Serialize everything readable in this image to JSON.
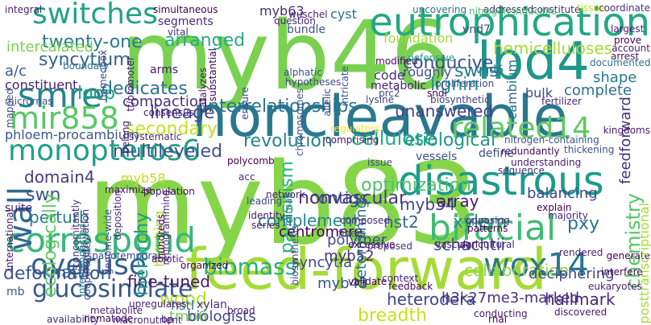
{
  "words": [
    {
      "text": "myb46",
      "color": "#7ad151"
    },
    {
      "text": "myb83",
      "color": "#86d549"
    },
    {
      "text": "noncleavable",
      "color": "#2a788e"
    },
    {
      "text": "feed-forward",
      "color": "#a5db36"
    },
    {
      "text": "eutrophication",
      "color": "#22a884"
    },
    {
      "text": "lbd4",
      "color": "#1f968b"
    },
    {
      "text": "disastrous",
      "color": "#1e9b8a"
    },
    {
      "text": "correspond",
      "color": "#35b779"
    },
    {
      "text": "bifacial",
      "color": "#3fbc73"
    },
    {
      "text": "switches",
      "color": "#20a386"
    },
    {
      "text": "smre",
      "color": "#25858e"
    },
    {
      "text": "wox14",
      "color": "#2a788e"
    },
    {
      "text": "mir858",
      "color": "#58c765"
    },
    {
      "text": "monopteros6",
      "color": "#1fa088"
    },
    {
      "text": "overuse",
      "color": "#33638d"
    },
    {
      "text": "related14",
      "color": "#5ec962"
    },
    {
      "text": "biomass",
      "color": "#29af7f"
    },
    {
      "text": "wall",
      "color": "#31688e"
    },
    {
      "text": "glucosinolate",
      "color": "#39568c"
    },
    {
      "text": "arranged",
      "color": "#25ac82"
    },
    {
      "text": "twenty-one",
      "color": "#287c8e"
    },
    {
      "text": "intercalated",
      "color": "#7ad151"
    },
    {
      "text": "syncytium",
      "color": "#33638d"
    },
    {
      "text": "dedicates",
      "color": "#2c728e"
    },
    {
      "text": "interrelationships",
      "color": "#2c728e"
    },
    {
      "text": "lineage",
      "color": "#404688"
    },
    {
      "text": "secondary",
      "color": "#c2df23"
    },
    {
      "text": "revolution",
      "color": "#26828e"
    },
    {
      "text": "cellulose",
      "color": "#25ac82"
    },
    {
      "text": "etiological",
      "color": "#1f988b"
    },
    {
      "text": "multileveled",
      "color": "#3b528b"
    },
    {
      "text": "unanswered",
      "color": "#433e85"
    },
    {
      "text": "hemicelluloses",
      "color": "#a5db36"
    },
    {
      "text": "conducive",
      "color": "#3b528b"
    },
    {
      "text": "lignin",
      "color": "#21918c"
    },
    {
      "text": "swns",
      "color": "#2a788e"
    },
    {
      "text": "roughly",
      "color": "#3e4c8a"
    },
    {
      "text": "foundation",
      "color": "#a0da39"
    },
    {
      "text": "myb63",
      "color": "#472d7b"
    },
    {
      "text": "cyst",
      "color": "#2c728e"
    },
    {
      "text": "vnd7",
      "color": "#3e4989"
    },
    {
      "text": "vnd6",
      "color": "#2c728e"
    },
    {
      "text": "a/c",
      "color": "#38588c"
    },
    {
      "text": "loop",
      "color": "#1fa088"
    },
    {
      "text": "constituent",
      "color": "#481f70"
    },
    {
      "text": "compaction",
      "color": "#46337f"
    },
    {
      "text": "domain4",
      "color": "#443983"
    },
    {
      "text": "swn",
      "color": "#3b528b"
    },
    {
      "text": "perturb",
      "color": "#2a788e"
    },
    {
      "text": "knat7",
      "color": "#2f6c8e"
    },
    {
      "text": "phloem-procambium",
      "color": "#39568c"
    },
    {
      "text": "myb58",
      "color": "#bddf26"
    },
    {
      "text": "contigs",
      "color": "#3b528b"
    },
    {
      "text": "parasitism",
      "color": "#2ab07f"
    },
    {
      "text": "nst2",
      "color": "#31688e"
    },
    {
      "text": "myb54",
      "color": "#404688"
    },
    {
      "text": "optimization",
      "color": "#4ac16d"
    },
    {
      "text": "array",
      "color": "#481a6c"
    },
    {
      "text": "schachtii",
      "color": "#3e4c8a"
    },
    {
      "text": "pxy",
      "color": "#2c728e"
    },
    {
      "text": "xylem",
      "color": "#21918c"
    },
    {
      "text": "myb52",
      "color": "#472d7b"
    },
    {
      "text": "syncytia",
      "color": "#3e4989"
    },
    {
      "text": "nonvascular",
      "color": "#453882"
    },
    {
      "text": "centromere",
      "color": "#440154"
    },
    {
      "text": "deformation",
      "color": "#3b528b"
    },
    {
      "text": "fine-tuned",
      "color": "#481a6c"
    },
    {
      "text": "wood",
      "color": "#b5de2b"
    },
    {
      "text": "tmo6",
      "color": "#6ece58"
    },
    {
      "text": "myb43",
      "color": "#3b528b"
    },
    {
      "text": "heterodera",
      "color": "#404688"
    },
    {
      "text": "breadth",
      "color": "#c8e020"
    },
    {
      "text": "hallmark",
      "color": "#482878"
    },
    {
      "text": "h3k27me3-marked",
      "color": "#46307e"
    },
    {
      "text": "biologists",
      "color": "#414487"
    },
    {
      "text": "xylan",
      "color": "#472d7b"
    },
    {
      "text": "nstl",
      "color": "#2d708e"
    },
    {
      "text": "collaboration",
      "color": "#8fd744"
    },
    {
      "text": "polymer",
      "color": "#3e4c8a"
    },
    {
      "text": "complement",
      "color": "#24868e"
    },
    {
      "text": "determining",
      "color": "#2e6e8e"
    },
    {
      "text": "balancing",
      "color": "#3e4989"
    },
    {
      "text": "feedforward",
      "color": "#46307e"
    },
    {
      "text": "complete",
      "color": "#2e6f8e"
    },
    {
      "text": "cambium",
      "color": "#2c728e"
    },
    {
      "text": "bulk",
      "color": "#3e4989"
    },
    {
      "text": "shape",
      "color": "#2a788e"
    },
    {
      "text": "code",
      "color": "#472f7d"
    },
    {
      "text": "metabolic",
      "color": "#481f70"
    },
    {
      "text": "hierarchy",
      "color": "#1e9b8a"
    },
    {
      "text": "deciphering",
      "color": "#3f4788"
    },
    {
      "text": "chemistry",
      "color": "#56c667"
    },
    {
      "text": "hatching",
      "color": "#a8db34"
    },
    {
      "text": "arms",
      "color": "#481a6c"
    },
    {
      "text": "segments",
      "color": "#472a7a"
    },
    {
      "text": "simultaneous",
      "color": "#440154"
    },
    {
      "text": "integral",
      "color": "#482173"
    },
    {
      "text": "bundle",
      "color": "#3b528b"
    },
    {
      "text": "alphatic",
      "color": "#3b528b"
    },
    {
      "text": "hypotheses",
      "color": "#404688"
    },
    {
      "text": "vital",
      "color": "#472d7b"
    },
    {
      "text": "kingdoms",
      "color": "#481b6d"
    },
    {
      "text": "nitrogen-containing",
      "color": "#3b528b"
    },
    {
      "text": "thickening",
      "color": "#3b528b"
    },
    {
      "text": "prc2",
      "color": "#404688"
    },
    {
      "text": "sndl",
      "color": "#440154"
    },
    {
      "text": "lysine",
      "color": "#3e4989"
    },
    {
      "text": "biosynthetic",
      "color": "#424086"
    },
    {
      "text": "fertilizer",
      "color": "#482878"
    },
    {
      "text": "redundantly",
      "color": "#46085c"
    },
    {
      "text": "define",
      "color": "#3d4d8a"
    },
    {
      "text": "understanding",
      "color": "#481a6c"
    },
    {
      "text": "sequence",
      "color": "#472c7a"
    },
    {
      "text": "vessels",
      "color": "#3b528b"
    },
    {
      "text": "addressed",
      "color": "#482878"
    },
    {
      "text": "constitute",
      "color": "#46337f"
    },
    {
      "text": "uncovering",
      "color": "#2c728e"
    },
    {
      "text": "wuschel",
      "color": "#482475"
    },
    {
      "text": "question",
      "color": "#482475"
    },
    {
      "text": "tissue",
      "color": "#c0df25"
    },
    {
      "text": "coordinate",
      "color": "#46337f"
    },
    {
      "text": "largest",
      "color": "#481f70"
    },
    {
      "text": "prove",
      "color": "#440154"
    },
    {
      "text": "arrest",
      "color": "#471365"
    },
    {
      "text": "account",
      "color": "#481b6d"
    },
    {
      "text": "documented",
      "color": "#2c728e"
    },
    {
      "text": "proliferation",
      "color": "#3f4889"
    },
    {
      "text": "modified",
      "color": "#46085c"
    },
    {
      "text": "defensive",
      "color": "#1f9e89"
    },
    {
      "text": "homeobox",
      "color": "#3e4989"
    },
    {
      "text": "micrornas",
      "color": "#3b528b"
    },
    {
      "text": "boundary",
      "color": "#2e6e8e"
    },
    {
      "text": "mapped",
      "color": "#3e4c8a"
    },
    {
      "text": "tf/promoter",
      "color": "#481a6c"
    },
    {
      "text": "catalyzes",
      "color": "#481b6d"
    },
    {
      "text": "substantial",
      "color": "#440154"
    },
    {
      "text": "systematic",
      "color": "#482878"
    },
    {
      "text": "chromosomes",
      "color": "#3b528b"
    },
    {
      "text": "ensure",
      "color": "#3e4c8a"
    },
    {
      "text": "belong",
      "color": "#481b6d"
    },
    {
      "text": "comprising",
      "color": "#481467"
    },
    {
      "text": "regulators",
      "color": "#fde725"
    },
    {
      "text": "allelic",
      "color": "#3e4989"
    },
    {
      "text": "consensus",
      "color": "#481467"
    },
    {
      "text": "polycomb",
      "color": "#440154"
    },
    {
      "text": "acc",
      "color": "#482475"
    },
    {
      "text": "maximize",
      "color": "#481467"
    },
    {
      "text": "population",
      "color": "#46085c"
    },
    {
      "text": "network",
      "color": "#481f70"
    },
    {
      "text": "issue",
      "color": "#3e4c8a"
    },
    {
      "text": "ecologically",
      "color": "#5ec962"
    },
    {
      "text": "international",
      "color": "#481a6c"
    },
    {
      "text": "suite",
      "color": "#481f70"
    },
    {
      "text": "concomitantly",
      "color": "#472f7d"
    },
    {
      "text": "trimethylation",
      "color": "#472d7b"
    },
    {
      "text": "interconnected",
      "color": "#2c728e"
    },
    {
      "text": "cooperative",
      "color": "#3b528b"
    },
    {
      "text": "genome-wide",
      "color": "#3e4989"
    },
    {
      "text": "deposition",
      "color": "#482878"
    },
    {
      "text": "hundreds",
      "color": "#440154"
    },
    {
      "text": "reprogramming",
      "color": "#472a7a"
    },
    {
      "text": "leading",
      "color": "#404688"
    },
    {
      "text": "identity",
      "color": "#481f70"
    },
    {
      "text": "series",
      "color": "#481b6d"
    },
    {
      "text": "mirnas",
      "color": "#2e6e8e"
    },
    {
      "text": "biosynthesis",
      "color": "#3b528b"
    },
    {
      "text": "composed",
      "color": "#482878"
    },
    {
      "text": "fibers",
      "color": "#3b528b"
    },
    {
      "text": "excessive",
      "color": "#440154"
    },
    {
      "text": "proposed",
      "color": "#46307e"
    },
    {
      "text": "explain",
      "color": "#440154"
    },
    {
      "text": "majority",
      "color": "#482878"
    },
    {
      "text": "opposing",
      "color": "#481f70"
    },
    {
      "text": "patterns",
      "color": "#440154"
    },
    {
      "text": "vascular",
      "color": "#481a6c"
    },
    {
      "text": "agricultural",
      "color": "#481b6d"
    },
    {
      "text": "rendered",
      "color": "#481f70"
    },
    {
      "text": "generate",
      "color": "#440154"
    },
    {
      "text": "posttranscriptional",
      "color": "#a5db36"
    },
    {
      "text": "spatiotemporal",
      "color": "#404688"
    },
    {
      "text": "organized",
      "color": "#440154"
    },
    {
      "text": "abiotic",
      "color": "#481467"
    },
    {
      "text": "mb",
      "color": "#3b528b"
    },
    {
      "text": "upregulates",
      "color": "#481f70"
    },
    {
      "text": "metabolite",
      "color": "#481f70"
    },
    {
      "text": "nematode",
      "color": "#440154"
    },
    {
      "text": "macronutrient",
      "color": "#482878"
    },
    {
      "text": "availability",
      "color": "#472d7b"
    },
    {
      "text": "bp",
      "color": "#481a6c"
    },
    {
      "text": "broad",
      "color": "#481f70"
    },
    {
      "text": "validate",
      "color": "#440154"
    },
    {
      "text": "context",
      "color": "#482475"
    },
    {
      "text": "feedback",
      "color": "#46085c"
    },
    {
      "text": "conducting",
      "color": "#481a6c"
    },
    {
      "text": "rnai",
      "color": "#440154"
    },
    {
      "text": "discovered",
      "color": "#481a6c"
    },
    {
      "text": "eukaryotes",
      "color": "#481f70"
    },
    {
      "text": "interfere",
      "color": "#440154"
    },
    {
      "text": "nitrogen-inducible",
      "color": "#4ac16d"
    },
    {
      "text": "intricate",
      "color": "#3b528b"
    }
  ]
}
